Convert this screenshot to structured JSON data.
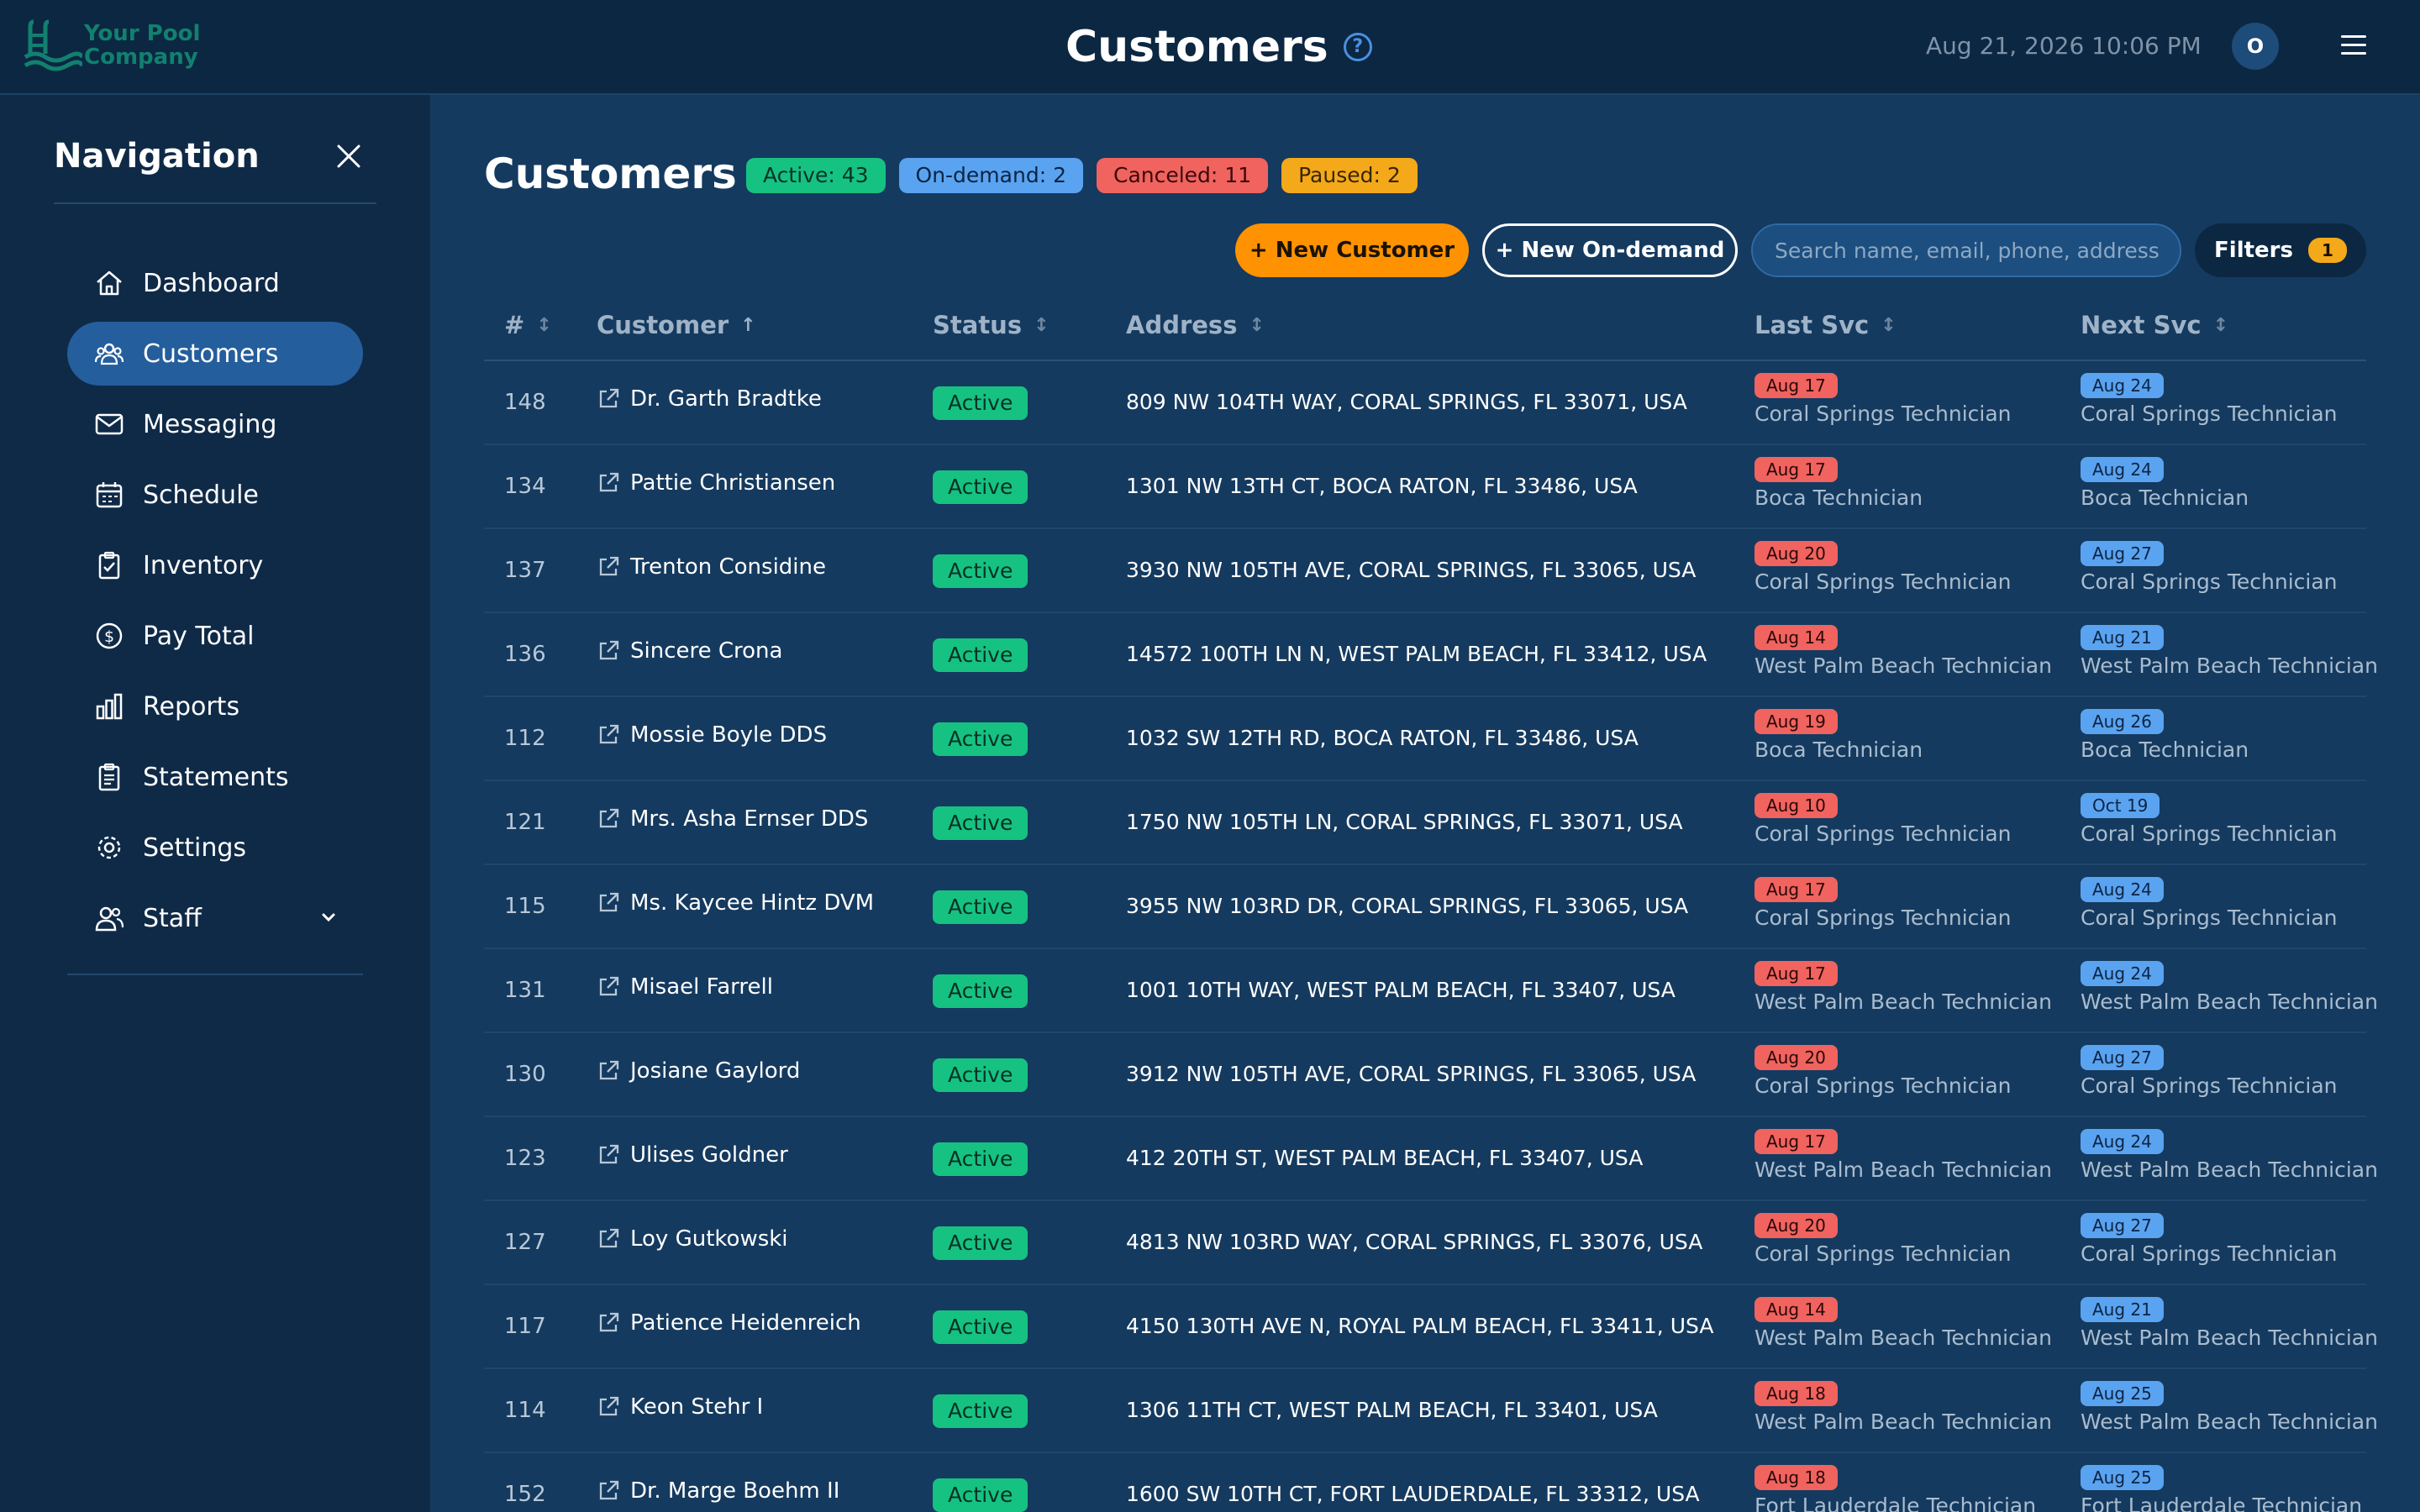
{
  "app": {
    "logo_text": "Your Pool Company",
    "page_heading": "Customers",
    "help_glyph": "?",
    "datetime": "Aug 21, 2026 10:06 PM",
    "avatar_initial": "O"
  },
  "sidebar": {
    "title": "Navigation",
    "items": [
      {
        "label": "Dashboard",
        "icon": "home-icon",
        "active": false
      },
      {
        "label": "Customers",
        "icon": "users-icon",
        "active": true
      },
      {
        "label": "Messaging",
        "icon": "mail-icon",
        "active": false
      },
      {
        "label": "Schedule",
        "icon": "calendar-icon",
        "active": false
      },
      {
        "label": "Inventory",
        "icon": "clipboard-icon",
        "active": false
      },
      {
        "label": "Pay Total",
        "icon": "dollar-icon",
        "active": false
      },
      {
        "label": "Reports",
        "icon": "bar-chart-icon",
        "active": false
      },
      {
        "label": "Statements",
        "icon": "document-icon",
        "active": false
      },
      {
        "label": "Settings",
        "icon": "gear-icon",
        "active": false
      },
      {
        "label": "Staff",
        "icon": "staff-icon",
        "active": false
      }
    ]
  },
  "main": {
    "title": "Customers",
    "badges": {
      "active": "Active: 43",
      "ondemand": "On-demand: 2",
      "canceled": "Canceled: 11",
      "paused": "Paused: 2"
    },
    "toolbar": {
      "new_customer": "+ New Customer",
      "new_ondemand": "+ New On-demand",
      "search_placeholder": "Search name, email, phone, address",
      "filters_label": "Filters",
      "filters_count": "1"
    },
    "columns": {
      "num": "#",
      "num_sort": "↕",
      "customer": "Customer",
      "customer_sort": "↑",
      "status": "Status",
      "status_sort": "↕",
      "address": "Address",
      "address_sort": "↕",
      "last_svc": "Last Svc",
      "last_svc_sort": "↕",
      "next_svc": "Next Svc",
      "next_svc_sort": "↕"
    },
    "rows": [
      {
        "num": "148",
        "name": "Dr. Garth Bradtke",
        "status": "Active",
        "address": "809 NW 104TH WAY, CORAL SPRINGS, FL 33071, USA",
        "last_date": "Aug 17",
        "last_tech": "Coral Springs Technician",
        "next_date": "Aug 24",
        "next_tech": "Coral Springs Technician"
      },
      {
        "num": "134",
        "name": "Pattie Christiansen",
        "status": "Active",
        "address": "1301 NW 13TH CT, BOCA RATON, FL 33486, USA",
        "last_date": "Aug 17",
        "last_tech": "Boca Technician",
        "next_date": "Aug 24",
        "next_tech": "Boca Technician"
      },
      {
        "num": "137",
        "name": "Trenton Considine",
        "status": "Active",
        "address": "3930 NW 105TH AVE, CORAL SPRINGS, FL 33065, USA",
        "last_date": "Aug 20",
        "last_tech": "Coral Springs Technician",
        "next_date": "Aug 27",
        "next_tech": "Coral Springs Technician"
      },
      {
        "num": "136",
        "name": "Sincere Crona",
        "status": "Active",
        "address": "14572 100TH LN N, WEST PALM BEACH, FL 33412, USA",
        "last_date": "Aug 14",
        "last_tech": "West Palm Beach Technician",
        "next_date": "Aug 21",
        "next_tech": "West Palm Beach Technician"
      },
      {
        "num": "112",
        "name": "Mossie Boyle DDS",
        "status": "Active",
        "address": "1032 SW 12TH RD, BOCA RATON, FL 33486, USA",
        "last_date": "Aug 19",
        "last_tech": "Boca Technician",
        "next_date": "Aug 26",
        "next_tech": "Boca Technician"
      },
      {
        "num": "121",
        "name": "Mrs. Asha Ernser DDS",
        "status": "Active",
        "address": "1750 NW 105TH LN, CORAL SPRINGS, FL 33071, USA",
        "last_date": "Aug 10",
        "last_tech": "Coral Springs Technician",
        "next_date": "Oct 19",
        "next_tech": "Coral Springs Technician"
      },
      {
        "num": "115",
        "name": "Ms. Kaycee Hintz DVM",
        "status": "Active",
        "address": "3955 NW 103RD DR, CORAL SPRINGS, FL 33065, USA",
        "last_date": "Aug 17",
        "last_tech": "Coral Springs Technician",
        "next_date": "Aug 24",
        "next_tech": "Coral Springs Technician"
      },
      {
        "num": "131",
        "name": "Misael Farrell",
        "status": "Active",
        "address": "1001 10TH WAY, WEST PALM BEACH, FL 33407, USA",
        "last_date": "Aug 17",
        "last_tech": "West Palm Beach Technician",
        "next_date": "Aug 24",
        "next_tech": "West Palm Beach Technician"
      },
      {
        "num": "130",
        "name": "Josiane Gaylord",
        "status": "Active",
        "address": "3912 NW 105TH AVE, CORAL SPRINGS, FL 33065, USA",
        "last_date": "Aug 20",
        "last_tech": "Coral Springs Technician",
        "next_date": "Aug 27",
        "next_tech": "Coral Springs Technician"
      },
      {
        "num": "123",
        "name": "Ulises Goldner",
        "status": "Active",
        "address": "412 20TH ST, WEST PALM BEACH, FL 33407, USA",
        "last_date": "Aug 17",
        "last_tech": "West Palm Beach Technician",
        "next_date": "Aug 24",
        "next_tech": "West Palm Beach Technician"
      },
      {
        "num": "127",
        "name": "Loy Gutkowski",
        "status": "Active",
        "address": "4813 NW 103RD WAY, CORAL SPRINGS, FL 33076, USA",
        "last_date": "Aug 20",
        "last_tech": "Coral Springs Technician",
        "next_date": "Aug 27",
        "next_tech": "Coral Springs Technician"
      },
      {
        "num": "117",
        "name": "Patience Heidenreich",
        "status": "Active",
        "address": "4150 130TH AVE N, ROYAL PALM BEACH, FL 33411, USA",
        "last_date": "Aug 14",
        "last_tech": "West Palm Beach Technician",
        "next_date": "Aug 21",
        "next_tech": "West Palm Beach Technician"
      },
      {
        "num": "114",
        "name": "Keon Stehr I",
        "status": "Active",
        "address": "1306 11TH CT, WEST PALM BEACH, FL 33401, USA",
        "last_date": "Aug 18",
        "last_tech": "West Palm Beach Technician",
        "next_date": "Aug 25",
        "next_tech": "West Palm Beach Technician"
      },
      {
        "num": "152",
        "name": "Dr. Marge Boehm II",
        "status": "Active",
        "address": "1600 SW 10TH CT, FORT LAUDERDALE, FL 33312, USA",
        "last_date": "Aug 18",
        "last_tech": "Fort Lauderdale Technician",
        "next_date": "Aug 25",
        "next_tech": "Fort Lauderdale Technician"
      }
    ]
  },
  "colors": {
    "background": "#153a5f",
    "topbar": "#0c2742",
    "sidebar": "#0f2a47",
    "accent_orange": "#ff9200",
    "status_active": "#16c281",
    "last_svc_pill": "#f0635e",
    "next_svc_pill": "#5aa3f0"
  }
}
